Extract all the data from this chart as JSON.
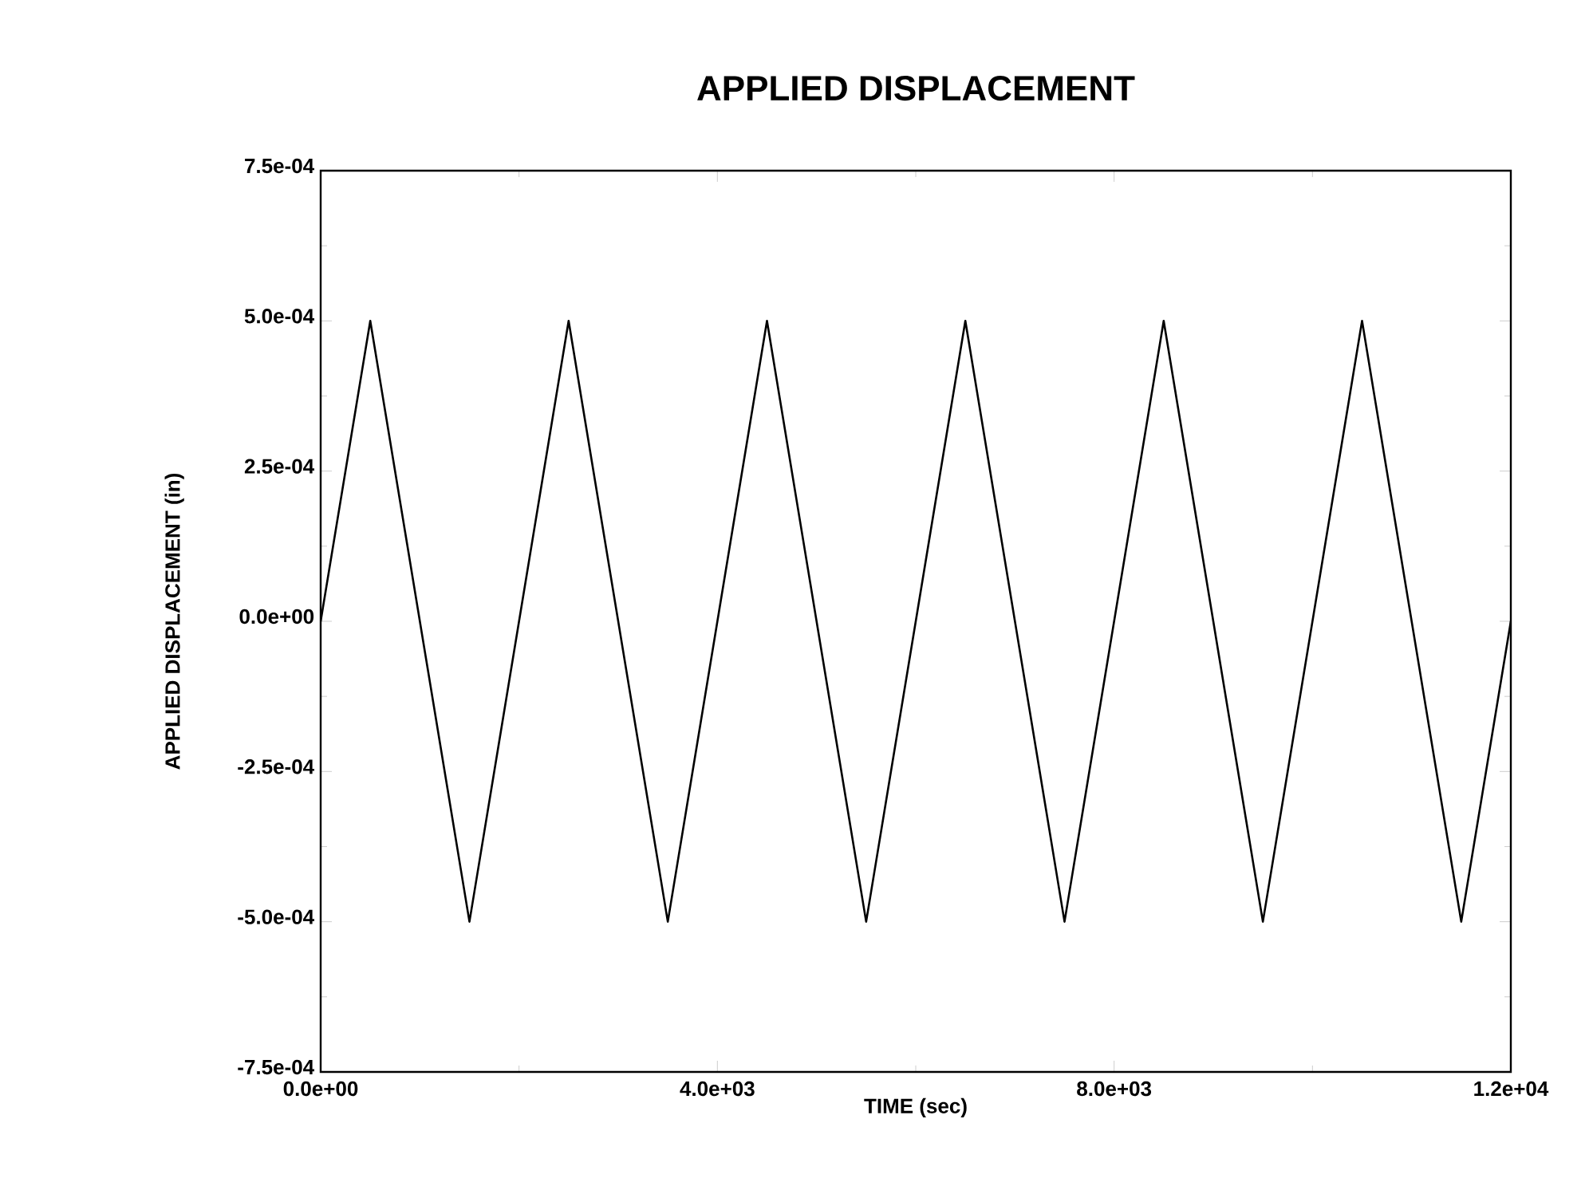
{
  "chart_data": {
    "type": "line",
    "title": "APPLIED DISPLACEMENT",
    "xlabel": "TIME (sec)",
    "ylabel": "APPLIED DISPLACEMENT (in)",
    "x": [
      0,
      500,
      1500,
      2500,
      3500,
      4500,
      5500,
      6500,
      7500,
      8500,
      9500,
      10500,
      11500,
      12000
    ],
    "series": [
      {
        "color": "#000000",
        "values": [
          0,
          0.0005,
          -0.0005,
          0.0005,
          -0.0005,
          0.0005,
          -0.0005,
          0.0005,
          -0.0005,
          0.0005,
          -0.0005,
          0.0005,
          -0.0005,
          0
        ]
      }
    ],
    "xlim": [
      0,
      12000
    ],
    "ylim": [
      -0.00075,
      0.00075
    ],
    "xticks": [
      {
        "value": 0,
        "label": "0.0e+00"
      },
      {
        "value": 4000,
        "label": "4.0e+03"
      },
      {
        "value": 8000,
        "label": "8.0e+03"
      },
      {
        "value": 12000,
        "label": "1.2e+04"
      }
    ],
    "yticks": [
      {
        "value": -0.00075,
        "label": "-7.5e-04"
      },
      {
        "value": -0.0005,
        "label": "-5.0e-04"
      },
      {
        "value": -0.00025,
        "label": "-2.5e-04"
      },
      {
        "value": 0,
        "label": "0.0e+00"
      },
      {
        "value": 0.00025,
        "label": "2.5e-04"
      },
      {
        "value": 0.0005,
        "label": "5.0e-04"
      },
      {
        "value": 0.00075,
        "label": "7.5e-04"
      }
    ],
    "grid": false,
    "marker": "none",
    "line_style": "solid"
  }
}
